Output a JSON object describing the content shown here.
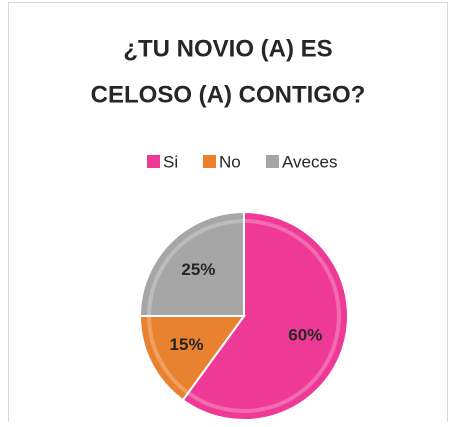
{
  "chart_data": {
    "type": "pie",
    "title": [
      "¿TU NOVIO (A) ES",
      "CELOSO (A) CONTIGO?"
    ],
    "categories": [
      "Si",
      "No",
      "Aveces"
    ],
    "values": [
      60,
      15,
      25
    ],
    "value_labels": [
      "60%",
      "15%",
      "25%"
    ],
    "colors": [
      "#ee3a96",
      "#e8822e",
      "#a6a6a6"
    ],
    "legend": "top"
  }
}
